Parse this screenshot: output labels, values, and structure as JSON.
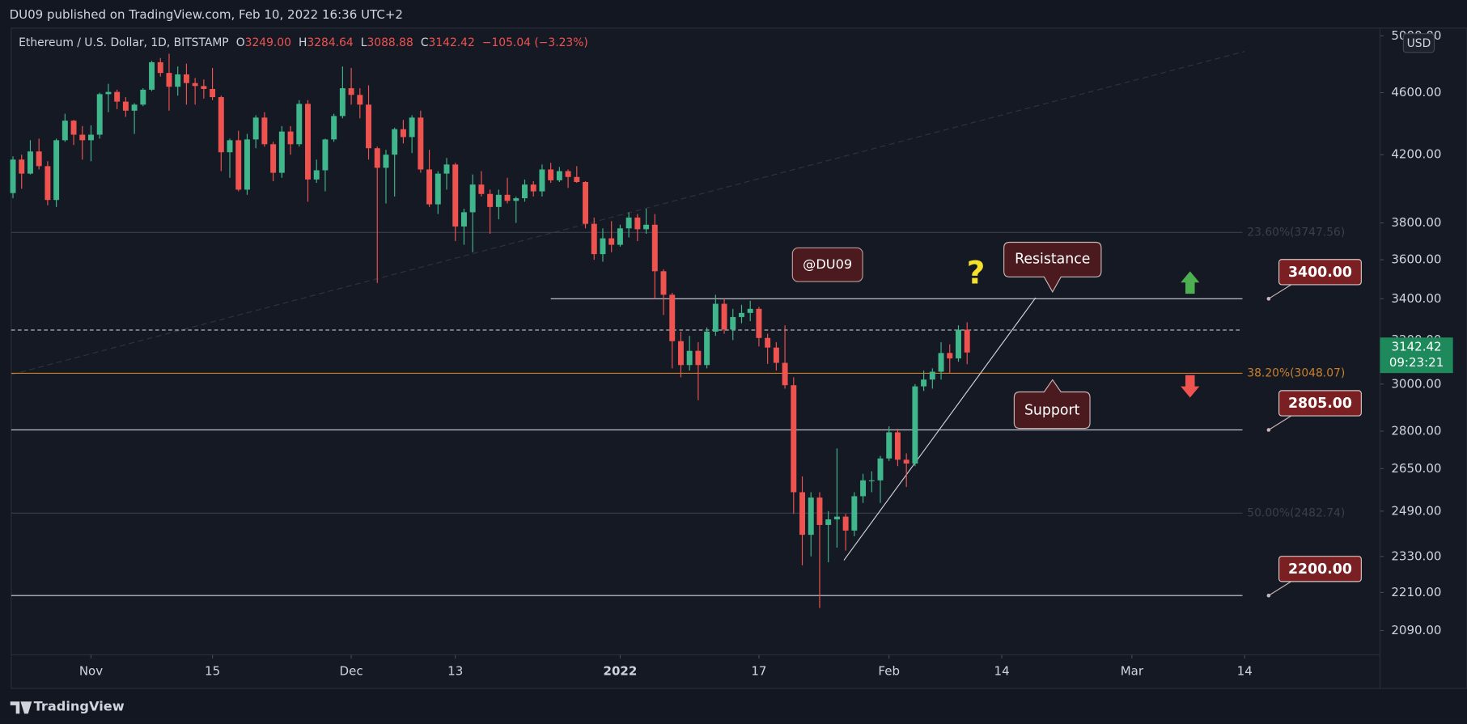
{
  "header": {
    "published": "DU09 published on TradingView.com, Feb 10, 2022 16:36 UTC+2",
    "brand": "TradingView"
  },
  "chart_data": {
    "type": "candlestick",
    "log_scale": true,
    "title": "Ethereum / U.S. Dollar, 1D, BITSTAMP",
    "ohlc_legend": [
      {
        "key": "O",
        "value": "3249.00"
      },
      {
        "key": "H",
        "value": "3284.64"
      },
      {
        "key": "L",
        "value": "3088.88"
      },
      {
        "key": "C",
        "value": "3142.42"
      }
    ],
    "change": "−105.04 (−3.23%)",
    "currency": "USD",
    "up_color": "#3fb68b",
    "down_color": "#ef5350",
    "ylim": [
      2017,
      5057
    ],
    "yticks": [
      {
        "value": 2090,
        "label": "2090.00"
      },
      {
        "value": 2210,
        "label": "2210.00"
      },
      {
        "value": 2330,
        "label": "2330.00"
      },
      {
        "value": 2490,
        "label": "2490.00"
      },
      {
        "value": 2650,
        "label": "2650.00"
      },
      {
        "value": 2800,
        "label": "2800.00"
      },
      {
        "value": 3000,
        "label": "3000.00"
      },
      {
        "value": 3200,
        "label": "3200.00"
      },
      {
        "value": 3400,
        "label": "3400.00"
      },
      {
        "value": 3600,
        "label": "3600.00"
      },
      {
        "value": 3800,
        "label": "3800.00"
      },
      {
        "value": 4200,
        "label": "4200.00"
      },
      {
        "value": 4600,
        "label": "4600.00"
      },
      {
        "value": 5000,
        "label": "5000.00"
      }
    ],
    "xlim": [
      -0.2,
      157.6
    ],
    "xticks": [
      {
        "value": 9,
        "label": "Nov"
      },
      {
        "value": 23,
        "label": "15"
      },
      {
        "value": 39,
        "label": "Dec"
      },
      {
        "value": 51,
        "label": "13"
      },
      {
        "value": 70,
        "label": "2022"
      },
      {
        "value": 86,
        "label": "17"
      },
      {
        "value": 101,
        "label": "Feb"
      },
      {
        "value": 114,
        "label": "14"
      },
      {
        "value": 129,
        "label": "Mar"
      },
      {
        "value": 142,
        "label": "14"
      }
    ],
    "ohlc": [
      [
        3970,
        4190,
        3940,
        4170
      ],
      [
        4170,
        4200,
        3995,
        4085
      ],
      [
        4085,
        4290,
        4080,
        4220
      ],
      [
        4220,
        4300,
        4110,
        4130
      ],
      [
        4130,
        4160,
        3900,
        3930
      ],
      [
        3930,
        4300,
        3890,
        4290
      ],
      [
        4290,
        4460,
        4280,
        4415
      ],
      [
        4415,
        4420,
        4260,
        4325
      ],
      [
        4325,
        4380,
        4170,
        4290
      ],
      [
        4290,
        4385,
        4160,
        4325
      ],
      [
        4325,
        4600,
        4300,
        4590
      ],
      [
        4590,
        4660,
        4470,
        4605
      ],
      [
        4605,
        4620,
        4490,
        4540
      ],
      [
        4540,
        4570,
        4440,
        4480
      ],
      [
        4480,
        4530,
        4330,
        4520
      ],
      [
        4520,
        4630,
        4510,
        4620
      ],
      [
        4620,
        4820,
        4610,
        4810
      ],
      [
        4810,
        4840,
        4710,
        4735
      ],
      [
        4735,
        4870,
        4480,
        4640
      ],
      [
        4640,
        4780,
        4580,
        4725
      ],
      [
        4725,
        4800,
        4520,
        4665
      ],
      [
        4665,
        4700,
        4520,
        4645
      ],
      [
        4645,
        4690,
        4560,
        4625
      ],
      [
        4625,
        4770,
        4550,
        4570
      ],
      [
        4570,
        4580,
        4100,
        4215
      ],
      [
        4215,
        4300,
        4060,
        4290
      ],
      [
        4290,
        4350,
        3980,
        3990
      ],
      [
        3990,
        4330,
        3960,
        4295
      ],
      [
        4295,
        4450,
        4240,
        4435
      ],
      [
        4435,
        4470,
        4250,
        4265
      ],
      [
        4265,
        4280,
        4040,
        4090
      ],
      [
        4090,
        4380,
        4060,
        4345
      ],
      [
        4345,
        4380,
        4200,
        4265
      ],
      [
        4265,
        4550,
        4250,
        4525
      ],
      [
        4525,
        4550,
        3920,
        4050
      ],
      [
        4050,
        4170,
        4030,
        4105
      ],
      [
        4105,
        4300,
        3980,
        4295
      ],
      [
        4295,
        4460,
        4280,
        4445
      ],
      [
        4445,
        4780,
        4430,
        4630
      ],
      [
        4630,
        4770,
        4520,
        4585
      ],
      [
        4585,
        4630,
        4430,
        4520
      ],
      [
        4520,
        4650,
        4170,
        4240
      ],
      [
        4240,
        4250,
        3480,
        4120
      ],
      [
        4120,
        4230,
        3910,
        4200
      ],
      [
        4200,
        4370,
        3950,
        4360
      ],
      [
        4360,
        4420,
        4270,
        4310
      ],
      [
        4310,
        4450,
        4210,
        4435
      ],
      [
        4435,
        4480,
        4090,
        4110
      ],
      [
        4110,
        4230,
        3890,
        3905
      ],
      [
        3905,
        4100,
        3850,
        4085
      ],
      [
        4085,
        4180,
        3990,
        4140
      ],
      [
        4140,
        4150,
        3700,
        3780
      ],
      [
        3780,
        3880,
        3680,
        3860
      ],
      [
        3860,
        4080,
        3640,
        4020
      ],
      [
        4020,
        4100,
        3950,
        3965
      ],
      [
        3965,
        3990,
        3740,
        3890
      ],
      [
        3890,
        3990,
        3820,
        3960
      ],
      [
        3960,
        4060,
        3910,
        3925
      ],
      [
        3925,
        3950,
        3800,
        3940
      ],
      [
        3940,
        4050,
        3920,
        4020
      ],
      [
        4020,
        4040,
        3950,
        3980
      ],
      [
        3980,
        4140,
        3950,
        4110
      ],
      [
        4110,
        4150,
        4030,
        4045
      ],
      [
        4045,
        4125,
        4035,
        4100
      ],
      [
        4100,
        4110,
        4000,
        4065
      ],
      [
        4065,
        4130,
        4030,
        4035
      ],
      [
        4035,
        4040,
        3770,
        3795
      ],
      [
        3795,
        3830,
        3600,
        3630
      ],
      [
        3630,
        3770,
        3590,
        3715
      ],
      [
        3715,
        3810,
        3640,
        3680
      ],
      [
        3680,
        3790,
        3670,
        3770
      ],
      [
        3770,
        3860,
        3720,
        3830
      ],
      [
        3830,
        3850,
        3700,
        3765
      ],
      [
        3765,
        3880,
        3740,
        3790
      ],
      [
        3790,
        3850,
        3400,
        3540
      ],
      [
        3540,
        3550,
        3320,
        3420
      ],
      [
        3420,
        3430,
        3070,
        3195
      ],
      [
        3195,
        3240,
        3030,
        3085
      ],
      [
        3085,
        3220,
        3060,
        3150
      ],
      [
        3150,
        3190,
        2930,
        3085
      ],
      [
        3085,
        3260,
        3070,
        3240
      ],
      [
        3240,
        3420,
        3220,
        3375
      ],
      [
        3375,
        3400,
        3230,
        3250
      ],
      [
        3250,
        3350,
        3200,
        3310
      ],
      [
        3310,
        3370,
        3280,
        3330
      ],
      [
        3330,
        3390,
        3290,
        3350
      ],
      [
        3350,
        3360,
        3170,
        3210
      ],
      [
        3210,
        3230,
        3090,
        3165
      ],
      [
        3165,
        3190,
        3060,
        3095
      ],
      [
        3095,
        3270,
        2980,
        2995
      ],
      [
        2995,
        3030,
        2480,
        2560
      ],
      [
        2560,
        2620,
        2300,
        2405
      ],
      [
        2405,
        2560,
        2330,
        2540
      ],
      [
        2540,
        2560,
        2160,
        2440
      ],
      [
        2440,
        2490,
        2310,
        2460
      ],
      [
        2460,
        2730,
        2360,
        2470
      ],
      [
        2470,
        2480,
        2350,
        2420
      ],
      [
        2420,
        2560,
        2400,
        2545
      ],
      [
        2545,
        2630,
        2520,
        2605
      ],
      [
        2605,
        2640,
        2560,
        2605
      ],
      [
        2605,
        2700,
        2520,
        2690
      ],
      [
        2690,
        2820,
        2680,
        2795
      ],
      [
        2795,
        2810,
        2660,
        2685
      ],
      [
        2685,
        2710,
        2580,
        2670
      ],
      [
        2670,
        3000,
        2660,
        2990
      ],
      [
        2990,
        3060,
        2970,
        3020
      ],
      [
        3020,
        3070,
        2980,
        3055
      ],
      [
        3055,
        3190,
        3020,
        3140
      ],
      [
        3140,
        3180,
        3050,
        3115
      ],
      [
        3115,
        3270,
        3100,
        3249
      ],
      [
        3249,
        3284.64,
        3088.88,
        3142.42
      ]
    ],
    "prev_close": 3247.46,
    "last_price": {
      "value": 3142.42,
      "label": "3142.42",
      "countdown": "09:23:21"
    },
    "levels": [
      {
        "value": 3400,
        "label": "3400.00",
        "from": 62
      },
      {
        "value": 2805,
        "label": "2805.00",
        "from": -0.2
      },
      {
        "value": 2200,
        "label": "2200.00",
        "from": -0.2
      }
    ],
    "fib": [
      {
        "value": 3747.56,
        "label": "23.60%(3747.56)",
        "color": "#3b3f4a"
      },
      {
        "value": 3048.07,
        "label": "38.20%(3048.07)",
        "color": "#c9802a"
      },
      {
        "value": 2482.74,
        "label": "50.00%(2482.74)",
        "color": "#3b3f4a"
      }
    ],
    "trendline": {
      "x": [
        95.8,
        117.9
      ],
      "y": [
        2317,
        3405
      ]
    },
    "fan_line": {
      "x": [
        -0.2,
        142
      ],
      "y": [
        3042,
        4887
      ]
    },
    "annotations": {
      "author": "@DU09",
      "resistance": "Resistance",
      "support": "Support",
      "question": "?"
    }
  }
}
